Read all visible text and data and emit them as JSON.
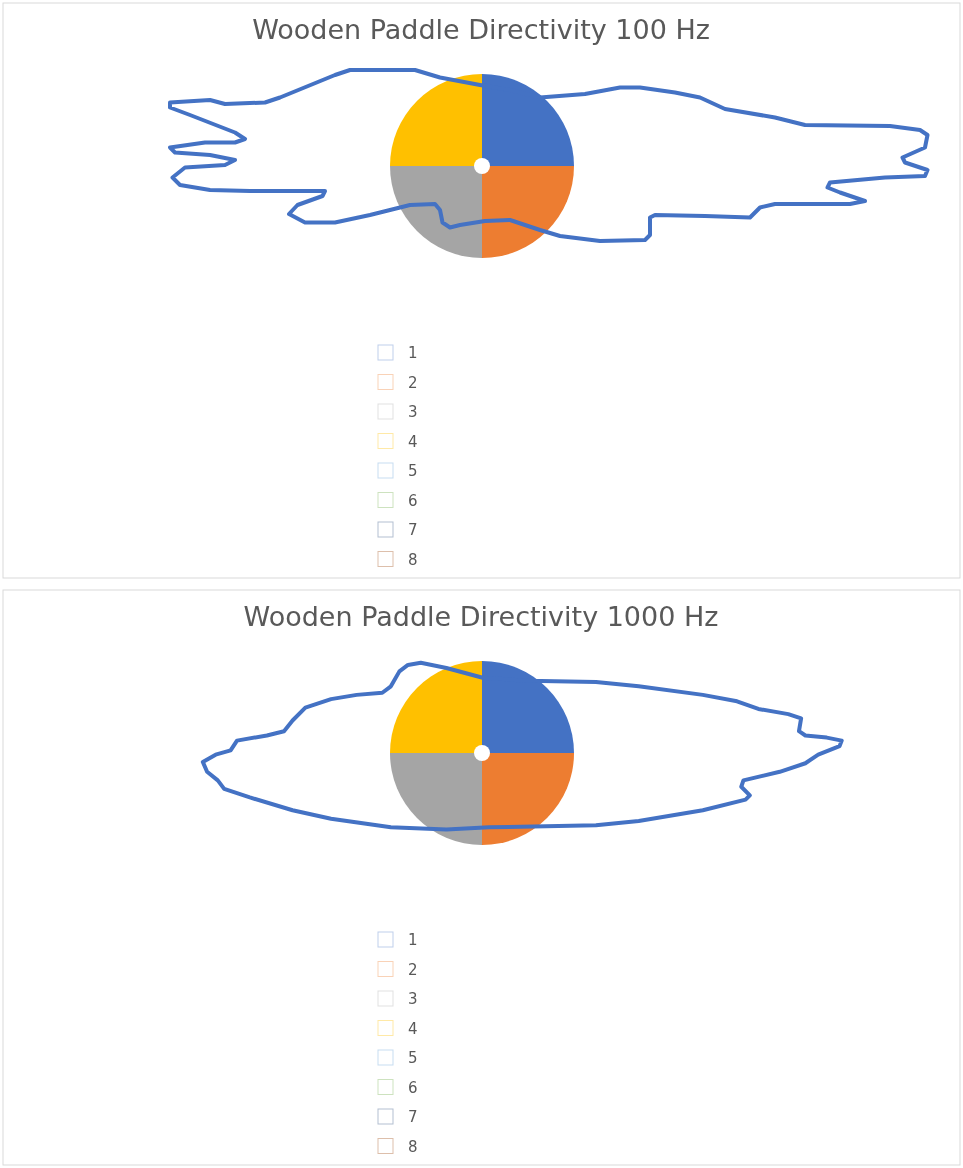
{
  "chart_data": [
    {
      "type": "pie",
      "title": "Wooden Paddle Directivity 100 Hz",
      "categories": [
        "1",
        "2",
        "3",
        "4",
        "5",
        "6",
        "7",
        "8"
      ],
      "values": [
        25,
        25,
        25,
        25,
        0,
        0,
        0,
        0
      ],
      "colors": [
        "#4472c4",
        "#ed7d31",
        "#a5a5a5",
        "#ffc000",
        "#5b9bd5",
        "#70ad47",
        "#264478",
        "#9e480e"
      ],
      "legend": "bottom"
    },
    {
      "type": "pie",
      "title": "Wooden Paddle Directivity 1000 Hz",
      "categories": [
        "1",
        "2",
        "3",
        "4",
        "5",
        "6",
        "7",
        "8"
      ],
      "values": [
        25,
        25,
        25,
        25,
        0,
        0,
        0,
        0
      ],
      "colors": [
        "#4472c4",
        "#ed7d31",
        "#a5a5a5",
        "#ffc000",
        "#5b9bd5",
        "#70ad47",
        "#264478",
        "#9e480e"
      ],
      "legend": "bottom"
    }
  ]
}
